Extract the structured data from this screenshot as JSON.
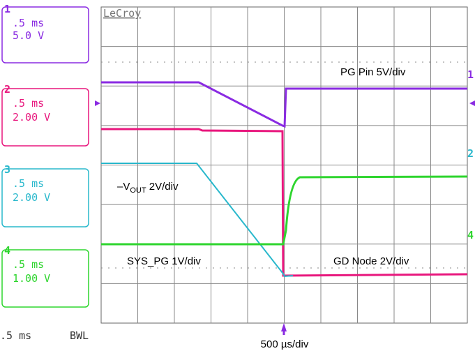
{
  "brand": "LeCroy",
  "channels": [
    {
      "number": "1",
      "time": ".5 ms",
      "volts": "5.0 V"
    },
    {
      "number": "2",
      "time": ".5 ms",
      "volts": "2.00 V"
    },
    {
      "number": "3",
      "time": ".5 ms",
      "volts": "2.00 V"
    },
    {
      "number": "4",
      "time": ".5 ms",
      "volts": "1.00 V"
    }
  ],
  "trace_labels": {
    "pg_pin": "PG Pin 5V/div",
    "vout_prefix": "–V",
    "vout_sub": "OUT",
    "vout_suffix": " 2V/div",
    "sys_pg": "SYS_PG 1V/div",
    "gd_node": "GD Node 2V/div"
  },
  "right_markers": [
    "1",
    "2",
    "4"
  ],
  "footer": {
    "timebase": ".5 ms",
    "bwl": "BWL",
    "scale": "500 µs/div"
  }
}
